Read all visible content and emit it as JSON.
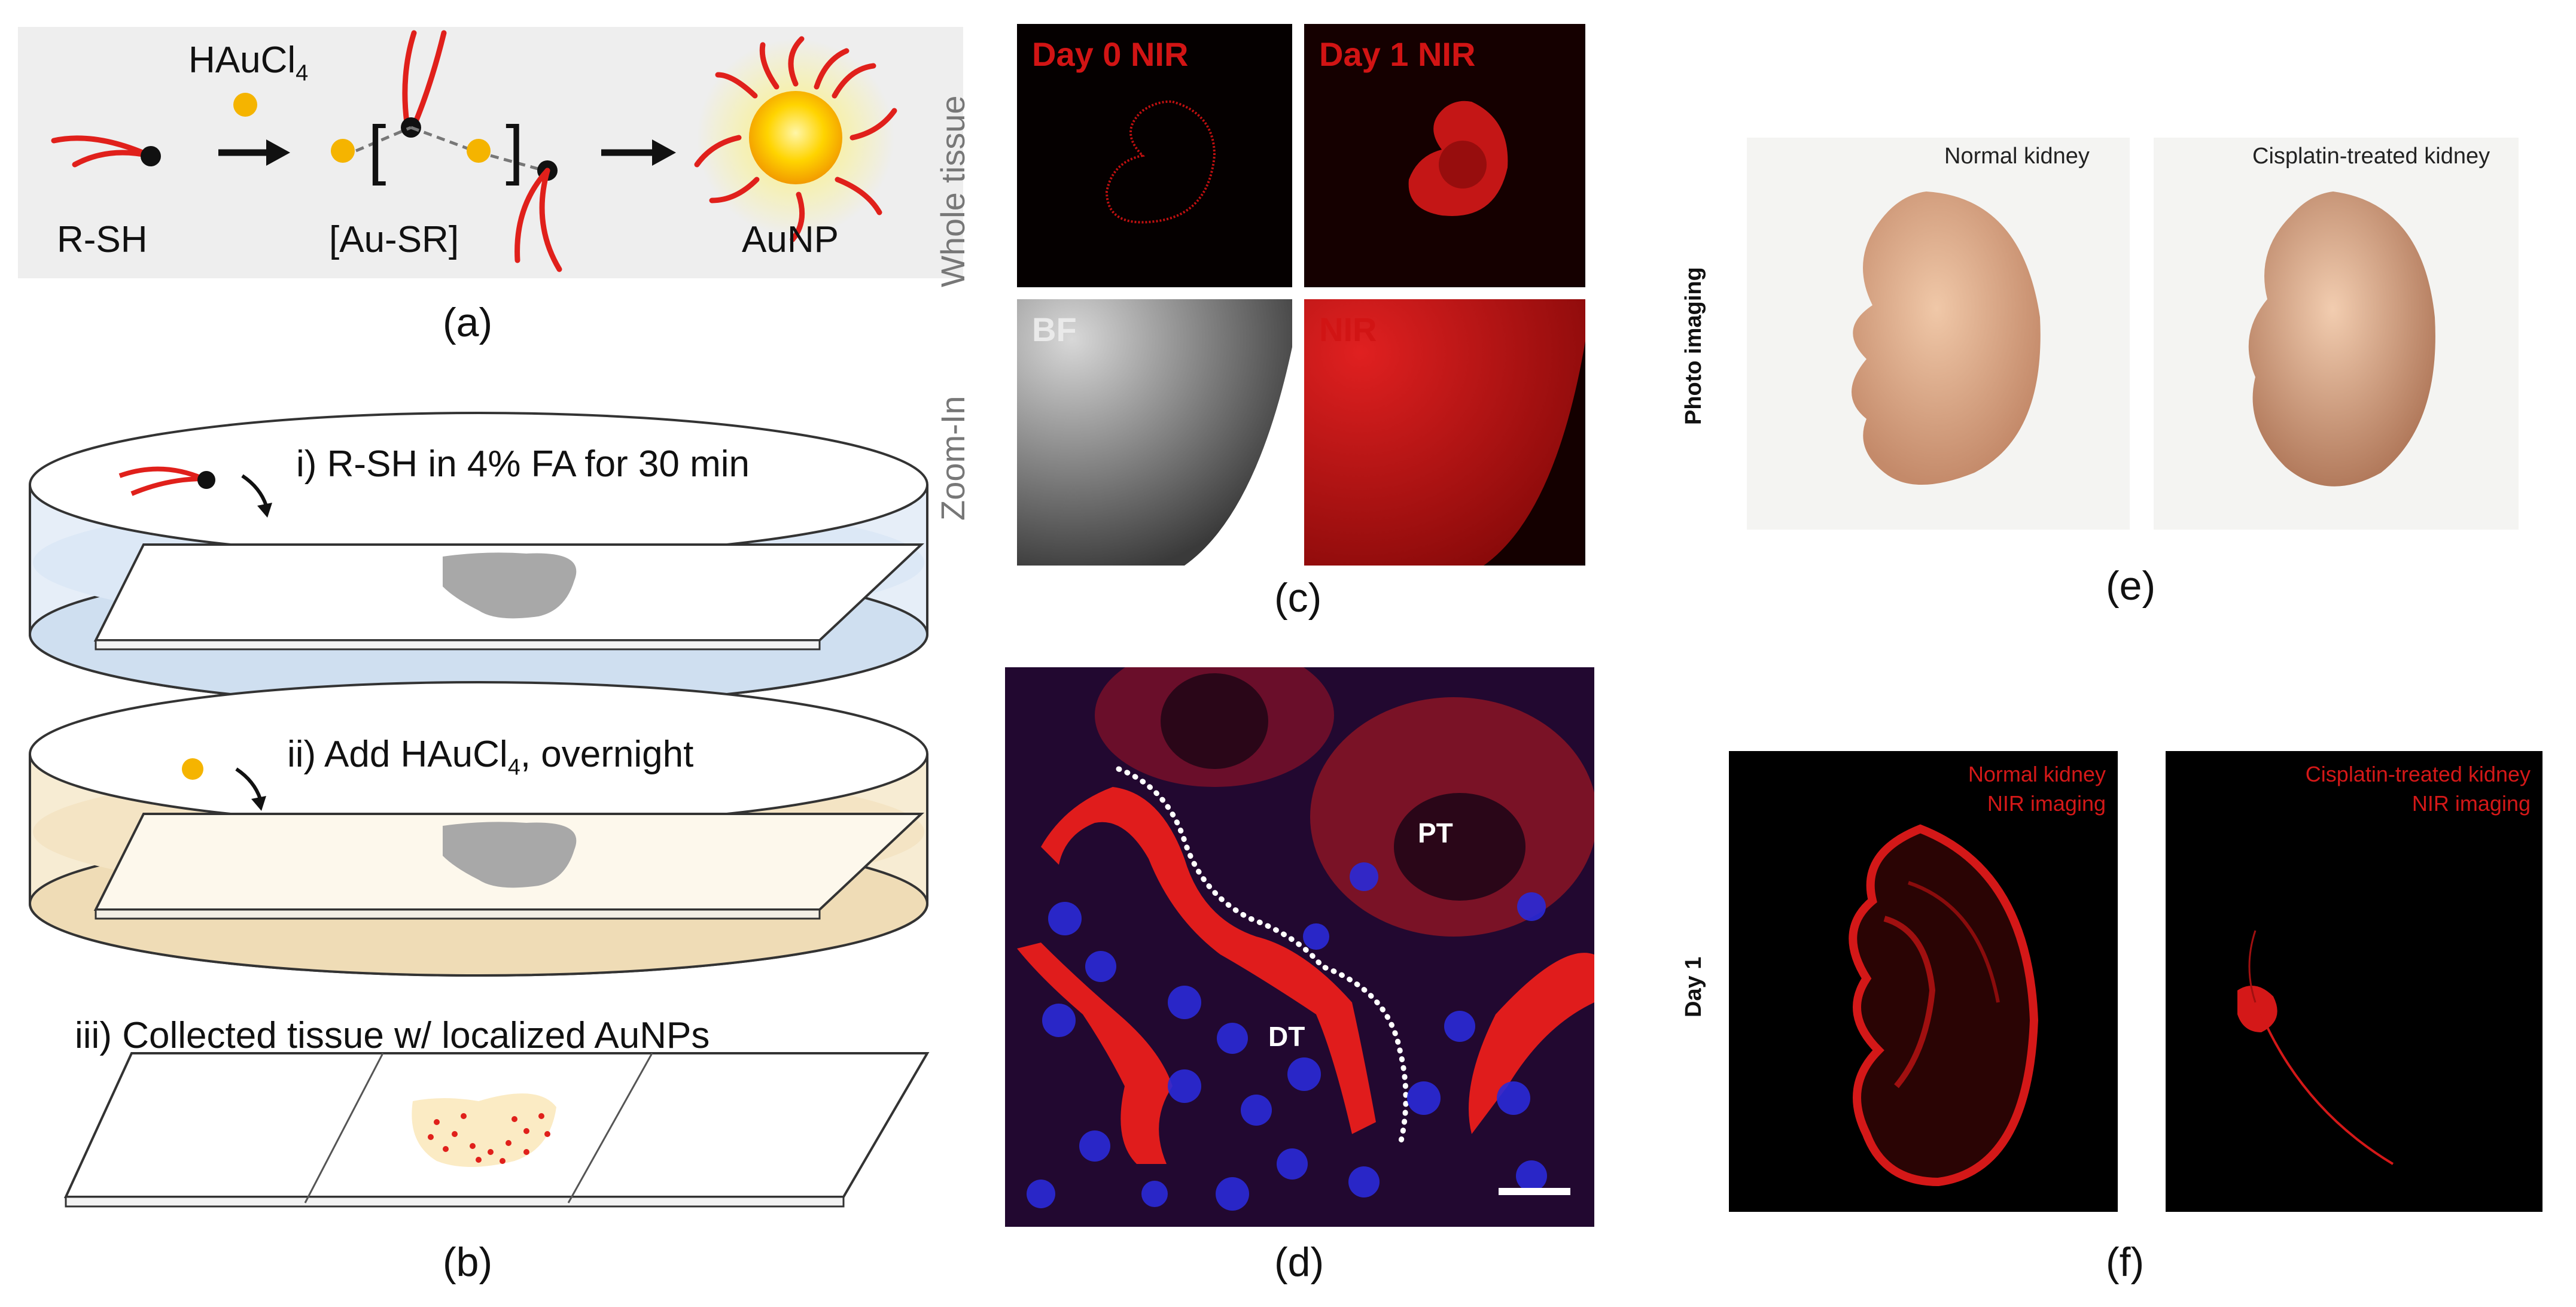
{
  "panel_a": {
    "reagent": "HAuCl",
    "reagent_sub": "4",
    "label_rsh": "R-SH",
    "label_ausr": "[Au-SR]",
    "label_aunp": "AuNP",
    "bracket_open": "[",
    "bracket_close": "]",
    "caption": "(a)"
  },
  "panel_b": {
    "step1": "i) R-SH in 4% FA for 30 min",
    "step2_prefix": "ii) Add HAuCl",
    "step2_sub": "4",
    "step2_suffix": ", overnight",
    "step3": "iii) Collected tissue w/ localized AuNPs",
    "caption": "(b)"
  },
  "panel_c": {
    "row_top": "Whole tissue",
    "row_bottom": "Zoom-In",
    "img1": "Day 0 NIR",
    "img2": "Day 1 NIR",
    "img3": "BF",
    "img4": "NIR",
    "caption": "(c)"
  },
  "panel_d": {
    "label_pt": "PT",
    "label_dt": "DT",
    "caption": "(d)"
  },
  "panel_e": {
    "row_label": "Photo imaging",
    "left_title": "Normal kidney",
    "right_title": "Cisplatin-treated kidney",
    "caption": "(e)"
  },
  "panel_f": {
    "row_label": "Day 1",
    "left_line1": "Normal kidney",
    "left_line2": "NIR imaging",
    "right_line1": "Cisplatin-treated kidney",
    "right_line2": "NIR imaging",
    "caption": "(f)"
  },
  "colors": {
    "ligand_red": "#e0201b",
    "gold": "#f5b400",
    "nir_red": "#d41818",
    "nucleus_blue": "#2a2ad8"
  }
}
